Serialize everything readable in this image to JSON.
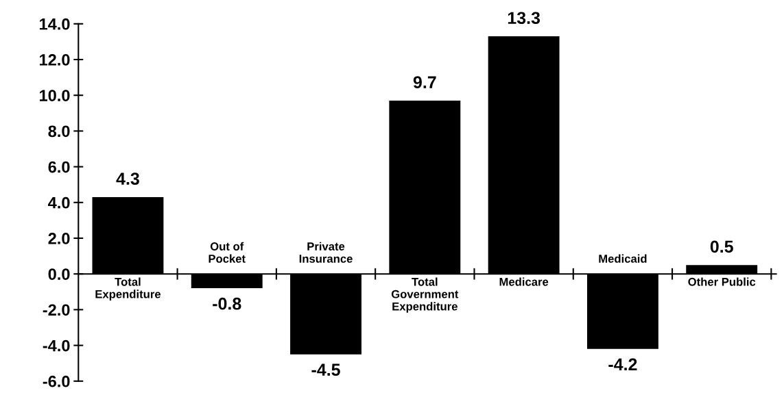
{
  "chart_data": {
    "type": "bar",
    "categories": [
      "Total\nExpenditure",
      "Out of\nPocket",
      "Private\nInsurance",
      "Total\nGovernment\nExpenditure",
      "Medicare",
      "Medicaid",
      "Other Public"
    ],
    "values": [
      4.3,
      -0.8,
      -4.5,
      9.7,
      13.3,
      -4.2,
      0.5
    ],
    "color": "#000000",
    "ylim": [
      -6,
      14
    ],
    "yticks": [
      {
        "value": -6,
        "label": "-6.0"
      },
      {
        "value": -4,
        "label": "-4.0"
      },
      {
        "value": -2,
        "label": "-2.0"
      },
      {
        "value": 0,
        "label": "0.0"
      },
      {
        "value": 2,
        "label": "2.0"
      },
      {
        "value": 4,
        "label": "4.0"
      },
      {
        "value": 6,
        "label": "6.0"
      },
      {
        "value": 8,
        "label": "8.0"
      },
      {
        "value": 10,
        "label": "10.0"
      },
      {
        "value": 12,
        "label": "12.0"
      },
      {
        "value": 14,
        "label": "14.0"
      }
    ],
    "data_labels": true,
    "grid": false,
    "legend": false
  }
}
